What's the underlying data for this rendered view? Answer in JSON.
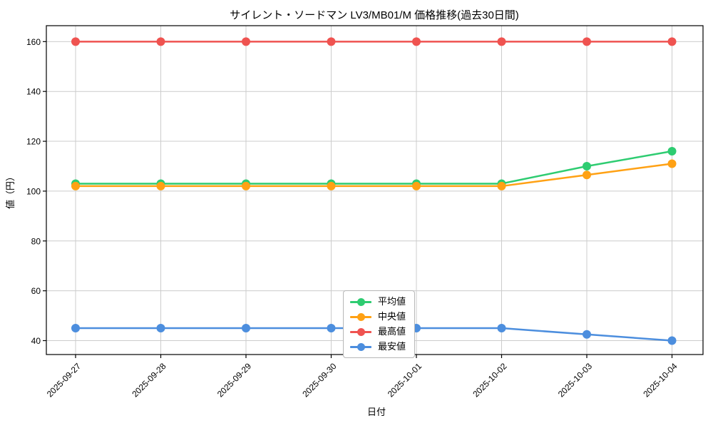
{
  "chart_data": {
    "type": "line",
    "title": "サイレント・ソードマン LV3/MB01/M 価格推移(過去30日間)",
    "xlabel": "日付",
    "ylabel": "値（円）",
    "x": [
      "2025-09-27",
      "2025-09-28",
      "2025-09-29",
      "2025-09-30",
      "2025-10-01",
      "2025-10-02",
      "2025-10-03",
      "2025-10-04"
    ],
    "series": [
      {
        "name": "平均値",
        "color": "#2ecc71",
        "values": [
          103,
          103,
          103,
          103,
          103,
          103,
          110,
          116
        ]
      },
      {
        "name": "中央値",
        "color": "#ffa114",
        "values": [
          102,
          102,
          102,
          102,
          102,
          102,
          106.5,
          111
        ]
      },
      {
        "name": "最高値",
        "color": "#ef5350",
        "values": [
          160,
          160,
          160,
          160,
          160,
          160,
          160,
          160
        ]
      },
      {
        "name": "最安値",
        "color": "#4c8ede",
        "values": [
          45,
          45,
          45,
          45,
          45,
          45,
          42.5,
          40
        ]
      }
    ],
    "yticks": [
      40,
      60,
      80,
      100,
      120,
      140,
      160
    ],
    "ylim": [
      34,
      166.5
    ],
    "grid": true,
    "legend_position": "lower center-left",
    "x_tick_rotation_deg": 45,
    "colors": {
      "grid": "#cccccc",
      "spine": "#000000",
      "text": "#000000",
      "background": "#ffffff"
    }
  }
}
